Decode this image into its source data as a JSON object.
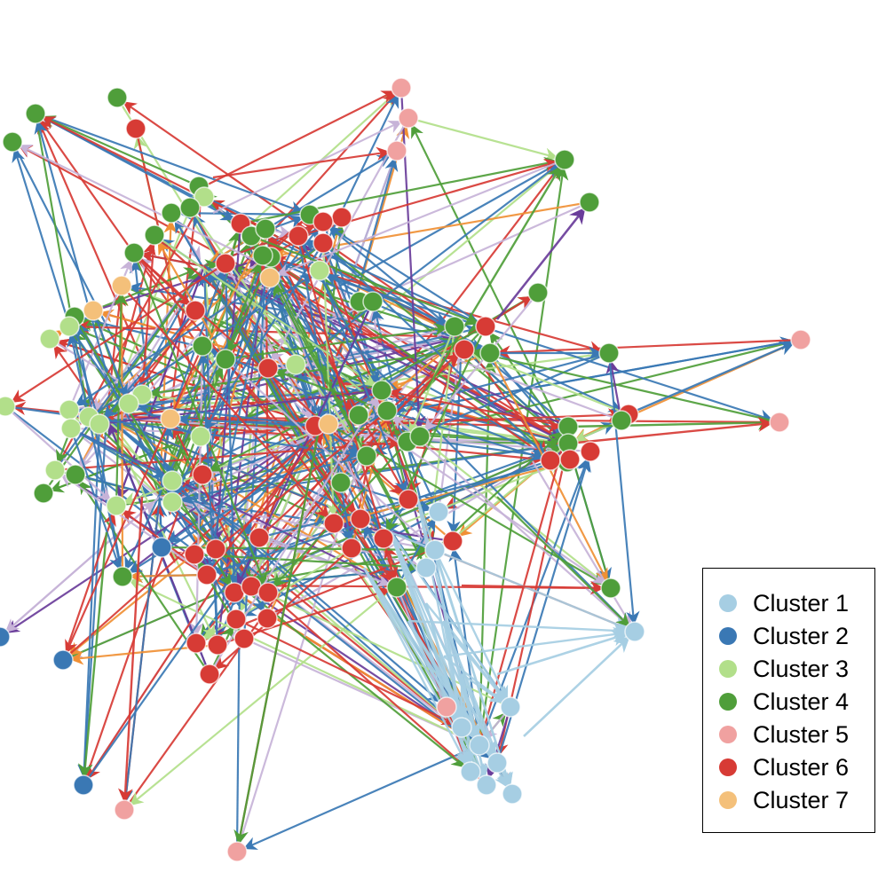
{
  "legend": {
    "items": [
      {
        "label": "Cluster 1",
        "color": "#a6cee3"
      },
      {
        "label": "Cluster 2",
        "color": "#3a78b4"
      },
      {
        "label": "Cluster 3",
        "color": "#b2df8a"
      },
      {
        "label": "Cluster 4",
        "color": "#4f9e3a"
      },
      {
        "label": "Cluster 5",
        "color": "#f0a1a0"
      },
      {
        "label": "Cluster 6",
        "color": "#d73b35"
      },
      {
        "label": "Cluster 7",
        "color": "#f4c07a"
      }
    ]
  },
  "edge_colors": {
    "lavender": "#c7b3d8",
    "purple": "#6a3d9a",
    "orange": "#f09035"
  }
}
